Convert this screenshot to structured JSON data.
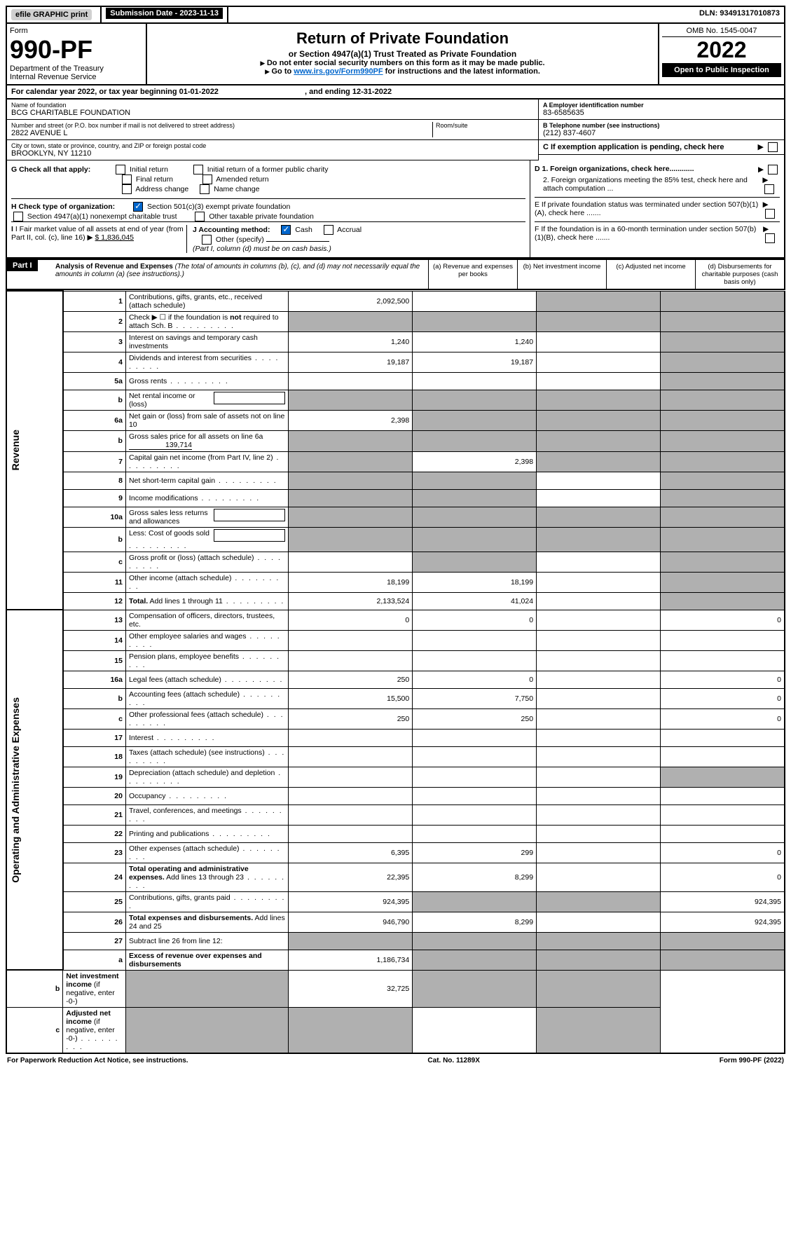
{
  "topbar": {
    "efile": "efile GRAPHIC print",
    "submission": "Submission Date - 2023-11-13",
    "dln": "DLN: 93491317010873"
  },
  "header": {
    "form_label": "Form",
    "form_no": "990-PF",
    "dept": "Department of the Treasury",
    "irs": "Internal Revenue Service",
    "title": "Return of Private Foundation",
    "subtitle": "or Section 4947(a)(1) Trust Treated as Private Foundation",
    "note1": "Do not enter social security numbers on this form as it may be made public.",
    "note2_prefix": "Go to ",
    "note2_link": "www.irs.gov/Form990PF",
    "note2_suffix": " for instructions and the latest information.",
    "omb": "OMB No. 1545-0047",
    "year": "2022",
    "open": "Open to Public Inspection"
  },
  "cal_year": {
    "prefix": "For calendar year 2022, or tax year beginning ",
    "begin": "01-01-2022",
    "mid": " , and ending ",
    "end": "12-31-2022"
  },
  "entity": {
    "name_label": "Name of foundation",
    "name": "BCG CHARITABLE FOUNDATION",
    "addr_label": "Number and street (or P.O. box number if mail is not delivered to street address)",
    "addr": "2822 AVENUE L",
    "room_label": "Room/suite",
    "city_label": "City or town, state or province, country, and ZIP or foreign postal code",
    "city": "BROOKLYN, NY  11210",
    "ein_label": "A Employer identification number",
    "ein": "83-6585635",
    "tel_label": "B Telephone number (see instructions)",
    "tel": "(212) 837-4607",
    "c_label": "C If exemption application is pending, check here"
  },
  "checks": {
    "g_label": "G Check all that apply:",
    "g_initial": "Initial return",
    "g_initial_former": "Initial return of a former public charity",
    "g_final": "Final return",
    "g_amended": "Amended return",
    "g_address": "Address change",
    "g_name": "Name change",
    "h_label": "H Check type of organization:",
    "h_501c3": "Section 501(c)(3) exempt private foundation",
    "h_4947": "Section 4947(a)(1) nonexempt charitable trust",
    "h_other": "Other taxable private foundation",
    "i_label": "I Fair market value of all assets at end of year (from Part II, col. (c), line 16)",
    "i_value": "$  1,836,045",
    "j_label": "J Accounting method:",
    "j_cash": "Cash",
    "j_accrual": "Accrual",
    "j_other": "Other (specify)",
    "j_note": "(Part I, column (d) must be on cash basis.)",
    "d1": "D 1. Foreign organizations, check here............",
    "d2": "2. Foreign organizations meeting the 85% test, check here and attach computation ...",
    "e": "E  If private foundation status was terminated under section 507(b)(1)(A), check here .......",
    "f": "F  If the foundation is in a 60-month termination under section 507(b)(1)(B), check here ......."
  },
  "part1": {
    "label": "Part I",
    "title": "Analysis of Revenue and Expenses",
    "title_note": " (The total of amounts in columns (b), (c), and (d) may not necessarily equal the amounts in column (a) (see instructions).)",
    "col_a": "(a) Revenue and expenses per books",
    "col_b": "(b) Net investment income",
    "col_c": "(c) Adjusted net income",
    "col_d": "(d) Disbursements for charitable purposes (cash basis only)"
  },
  "vlabels": {
    "revenue": "Revenue",
    "expenses": "Operating and Administrative Expenses"
  },
  "rows": [
    {
      "n": "1",
      "d": "Contributions, gifts, grants, etc., received (attach schedule)",
      "a": "2,092,500",
      "b": "",
      "c": "g",
      "dcol": "g"
    },
    {
      "n": "2",
      "d": "Check ▶ ☐ if the foundation is <b>not</b> required to attach Sch. B",
      "dots": true,
      "a": "g",
      "b": "g",
      "c": "g",
      "dcol": "g"
    },
    {
      "n": "3",
      "d": "Interest on savings and temporary cash investments",
      "a": "1,240",
      "b": "1,240",
      "c": "",
      "dcol": "g"
    },
    {
      "n": "4",
      "d": "Dividends and interest from securities",
      "dots": true,
      "a": "19,187",
      "b": "19,187",
      "c": "",
      "dcol": "g"
    },
    {
      "n": "5a",
      "d": "Gross rents",
      "dots": true,
      "a": "",
      "b": "",
      "c": "",
      "dcol": "g"
    },
    {
      "n": "b",
      "d": "Net rental income or (loss)",
      "box": true,
      "a": "g",
      "b": "g",
      "c": "g",
      "dcol": "g"
    },
    {
      "n": "6a",
      "d": "Net gain or (loss) from sale of assets not on line 10",
      "a": "2,398",
      "b": "g",
      "c": "g",
      "dcol": "g"
    },
    {
      "n": "b",
      "d": "Gross sales price for all assets on line 6a",
      "inline": "139,714",
      "a": "g",
      "b": "g",
      "c": "g",
      "dcol": "g"
    },
    {
      "n": "7",
      "d": "Capital gain net income (from Part IV, line 2)",
      "dots": true,
      "a": "g",
      "b": "2,398",
      "c": "g",
      "dcol": "g"
    },
    {
      "n": "8",
      "d": "Net short-term capital gain",
      "dots": true,
      "a": "g",
      "b": "g",
      "c": "",
      "dcol": "g"
    },
    {
      "n": "9",
      "d": "Income modifications",
      "dots": true,
      "a": "g",
      "b": "g",
      "c": "",
      "dcol": "g"
    },
    {
      "n": "10a",
      "d": "Gross sales less returns and allowances",
      "box": true,
      "a": "g",
      "b": "g",
      "c": "g",
      "dcol": "g"
    },
    {
      "n": "b",
      "d": "Less: Cost of goods sold",
      "dots": true,
      "box": true,
      "a": "g",
      "b": "g",
      "c": "g",
      "dcol": "g"
    },
    {
      "n": "c",
      "d": "Gross profit or (loss) (attach schedule)",
      "dots": true,
      "a": "",
      "b": "g",
      "c": "",
      "dcol": "g"
    },
    {
      "n": "11",
      "d": "Other income (attach schedule)",
      "dots": true,
      "a": "18,199",
      "b": "18,199",
      "c": "",
      "dcol": "g"
    },
    {
      "n": "12",
      "d": "<b>Total.</b> Add lines 1 through 11",
      "dots": true,
      "a": "2,133,524",
      "b": "41,024",
      "c": "",
      "dcol": "g"
    },
    {
      "n": "13",
      "d": "Compensation of officers, directors, trustees, etc.",
      "a": "0",
      "b": "0",
      "c": "",
      "dcol": "0"
    },
    {
      "n": "14",
      "d": "Other employee salaries and wages",
      "dots": true,
      "a": "",
      "b": "",
      "c": "",
      "dcol": ""
    },
    {
      "n": "15",
      "d": "Pension plans, employee benefits",
      "dots": true,
      "a": "",
      "b": "",
      "c": "",
      "dcol": ""
    },
    {
      "n": "16a",
      "d": "Legal fees (attach schedule)",
      "dots": true,
      "a": "250",
      "b": "0",
      "c": "",
      "dcol": "0"
    },
    {
      "n": "b",
      "d": "Accounting fees (attach schedule)",
      "dots": true,
      "a": "15,500",
      "b": "7,750",
      "c": "",
      "dcol": "0"
    },
    {
      "n": "c",
      "d": "Other professional fees (attach schedule)",
      "dots": true,
      "a": "250",
      "b": "250",
      "c": "",
      "dcol": "0"
    },
    {
      "n": "17",
      "d": "Interest",
      "dots": true,
      "a": "",
      "b": "",
      "c": "",
      "dcol": ""
    },
    {
      "n": "18",
      "d": "Taxes (attach schedule) (see instructions)",
      "dots": true,
      "a": "",
      "b": "",
      "c": "",
      "dcol": ""
    },
    {
      "n": "19",
      "d": "Depreciation (attach schedule) and depletion",
      "dots": true,
      "a": "",
      "b": "",
      "c": "",
      "dcol": "g"
    },
    {
      "n": "20",
      "d": "Occupancy",
      "dots": true,
      "a": "",
      "b": "",
      "c": "",
      "dcol": ""
    },
    {
      "n": "21",
      "d": "Travel, conferences, and meetings",
      "dots": true,
      "a": "",
      "b": "",
      "c": "",
      "dcol": ""
    },
    {
      "n": "22",
      "d": "Printing and publications",
      "dots": true,
      "a": "",
      "b": "",
      "c": "",
      "dcol": ""
    },
    {
      "n": "23",
      "d": "Other expenses (attach schedule)",
      "dots": true,
      "a": "6,395",
      "b": "299",
      "c": "",
      "dcol": "0"
    },
    {
      "n": "24",
      "d": "<b>Total operating and administrative expenses.</b> Add lines 13 through 23",
      "dots": true,
      "a": "22,395",
      "b": "8,299",
      "c": "",
      "dcol": "0"
    },
    {
      "n": "25",
      "d": "Contributions, gifts, grants paid",
      "dots": true,
      "a": "924,395",
      "b": "g",
      "c": "g",
      "dcol": "924,395"
    },
    {
      "n": "26",
      "d": "<b>Total expenses and disbursements.</b> Add lines 24 and 25",
      "a": "946,790",
      "b": "8,299",
      "c": "",
      "dcol": "924,395"
    },
    {
      "n": "27",
      "d": "Subtract line 26 from line 12:",
      "a": "g",
      "b": "g",
      "c": "g",
      "dcol": "g"
    },
    {
      "n": "a",
      "d": "<b>Excess of revenue over expenses and disbursements</b>",
      "a": "1,186,734",
      "b": "g",
      "c": "g",
      "dcol": "g"
    },
    {
      "n": "b",
      "d": "<b>Net investment income</b> (if negative, enter -0-)",
      "a": "g",
      "b": "32,725",
      "c": "g",
      "dcol": "g"
    },
    {
      "n": "c",
      "d": "<b>Adjusted net income</b> (if negative, enter -0-)",
      "dots": true,
      "a": "g",
      "b": "g",
      "c": "",
      "dcol": "g"
    }
  ],
  "footer": {
    "left": "For Paperwork Reduction Act Notice, see instructions.",
    "mid": "Cat. No. 11289X",
    "right": "Form 990-PF (2022)"
  }
}
